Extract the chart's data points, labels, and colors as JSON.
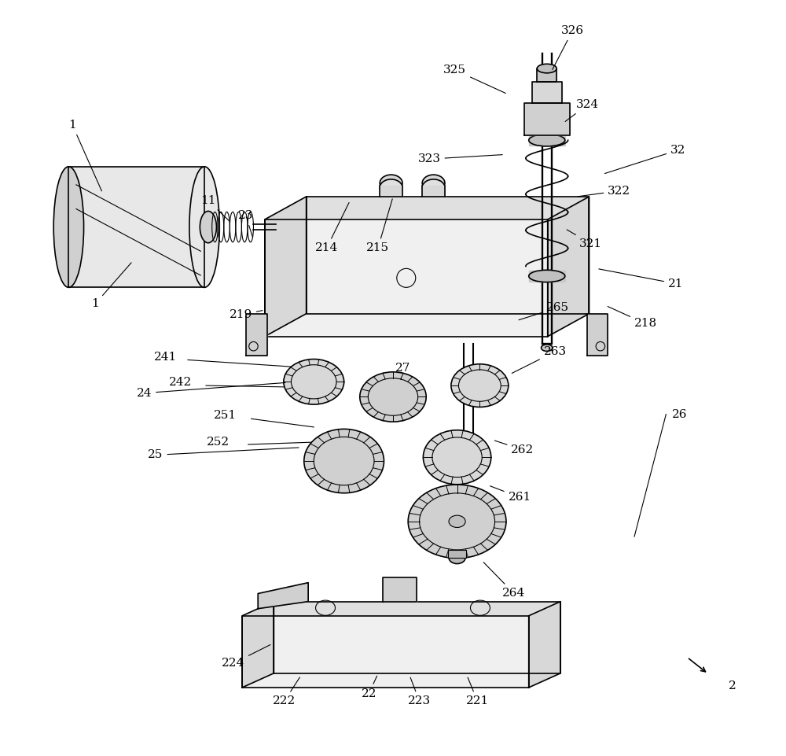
{
  "bg_color": "#ffffff",
  "line_color": "#000000",
  "text_color": "#000000",
  "fig_width": 10.0,
  "fig_height": 9.61
}
